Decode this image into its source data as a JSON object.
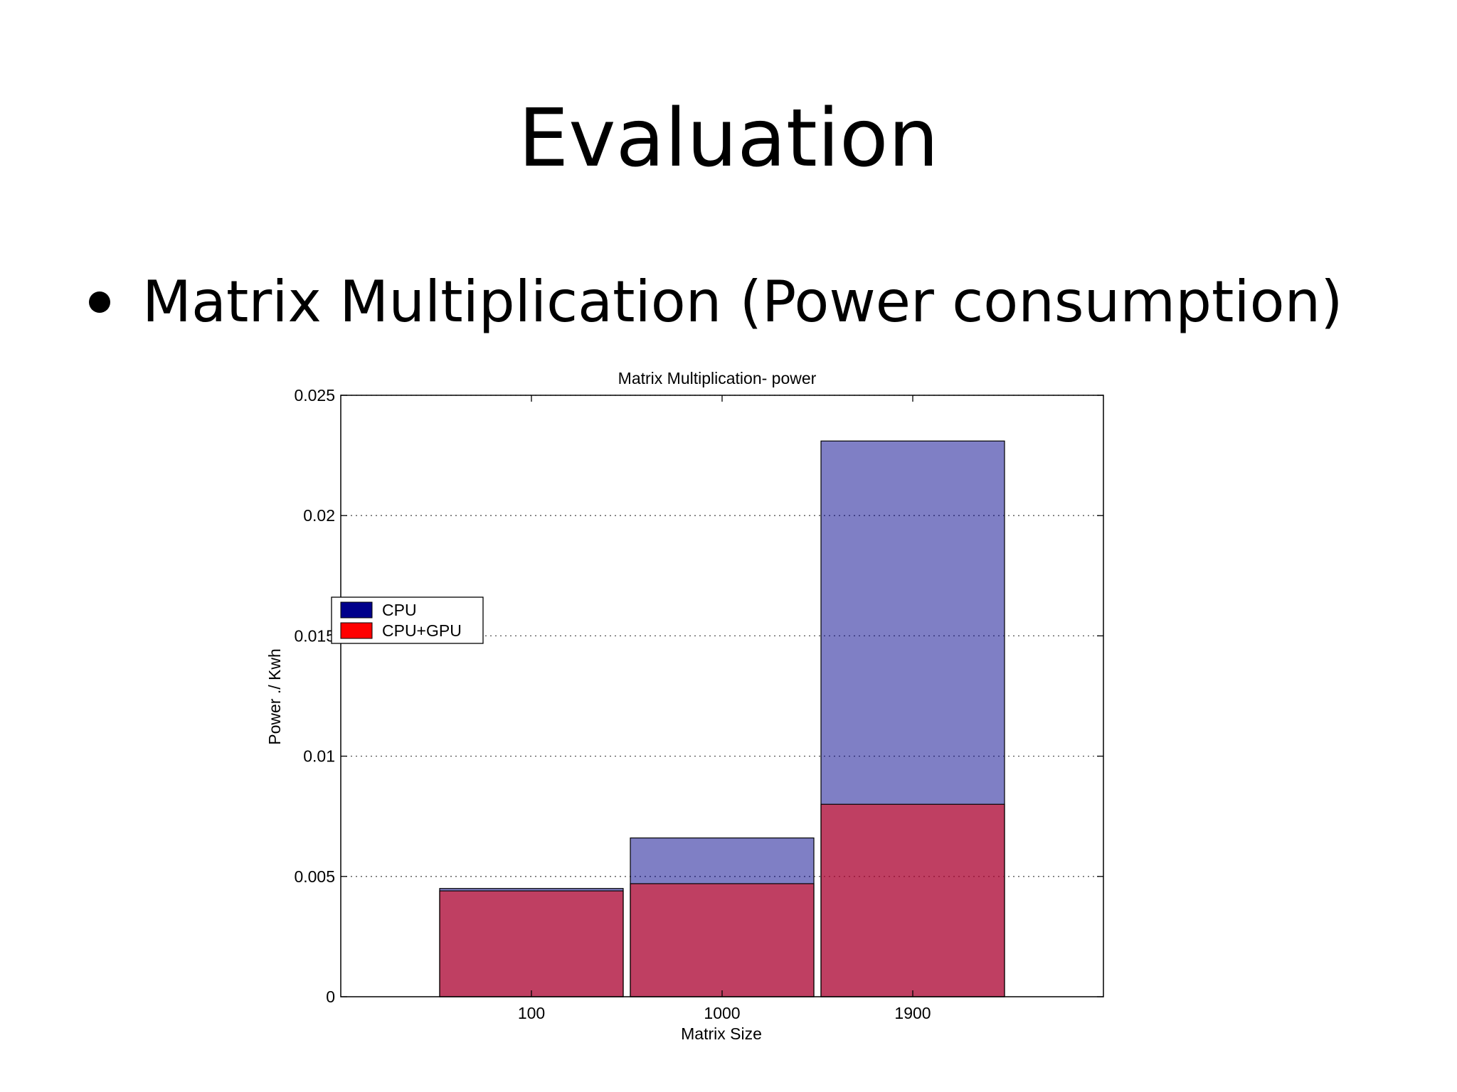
{
  "slide": {
    "title": "Evaluation",
    "bullet": "Matrix Multiplication (Power consumption)"
  },
  "chart_data": {
    "type": "bar",
    "title": "Matrix Multiplication- power",
    "xlabel": "Matrix Size",
    "ylabel": "Power ./ Kwh",
    "categories": [
      "100",
      "1000",
      "1900"
    ],
    "ylim": [
      0,
      0.025
    ],
    "yticks": [
      0,
      0.005,
      0.01,
      0.015,
      0.02,
      0.025
    ],
    "ytick_labels": [
      "0",
      "0.005",
      "0.01",
      "0.015",
      "0.02",
      "0.025"
    ],
    "grid": true,
    "legend_position": "middle-left",
    "overlay": true,
    "series": [
      {
        "name": "CPU",
        "values": [
          0.0045,
          0.0066,
          0.0231
        ],
        "color": "#00008b",
        "opacity": 0.5
      },
      {
        "name": "CPU+GPU",
        "values": [
          0.0044,
          0.0047,
          0.008
        ],
        "color": "#ff0000",
        "opacity": 0.5
      }
    ]
  }
}
